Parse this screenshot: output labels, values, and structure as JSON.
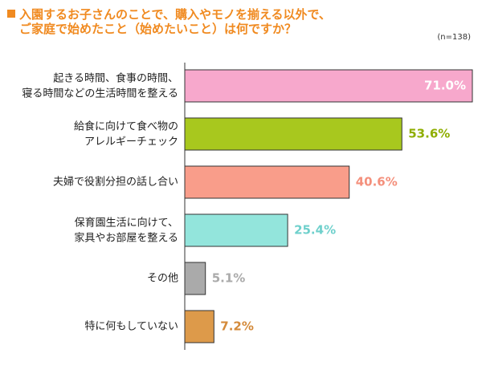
{
  "chart_data": {
    "type": "hbar",
    "title": "入園するお子さんのことで、購入やモノを揃える以外で、\nご家庭で始めたこと（始めたいこと）は何ですか？",
    "subtitle": "(n=138)",
    "categories": [
      "起きる時間、食事の時間、\n寝る時間などの生活時間を整える",
      "給食に向けて食べ物の\nアレルギーチェック",
      "夫婦で役割分担の話し合い",
      "保育園生活に向けて、\n家具やお部屋を整える",
      "その他",
      "特に何もしていない"
    ],
    "values": [
      71.0,
      53.6,
      40.6,
      25.4,
      5.1,
      7.2
    ],
    "value_labels": [
      "71.0%",
      "53.6%",
      "40.6%",
      "25.4%",
      "5.1%",
      "7.2%"
    ],
    "colors": [
      "#f7a8cc",
      "#a8c81e",
      "#f99d8a",
      "#93e5dc",
      "#aaaaaa",
      "#dd9a4a"
    ],
    "value_label_colors": [
      "#ffffff",
      "#8fae00",
      "#f4907c",
      "#6fd0cc",
      "#aaaaaa",
      "#d48a3a"
    ],
    "xlim": [
      0,
      71
    ]
  }
}
